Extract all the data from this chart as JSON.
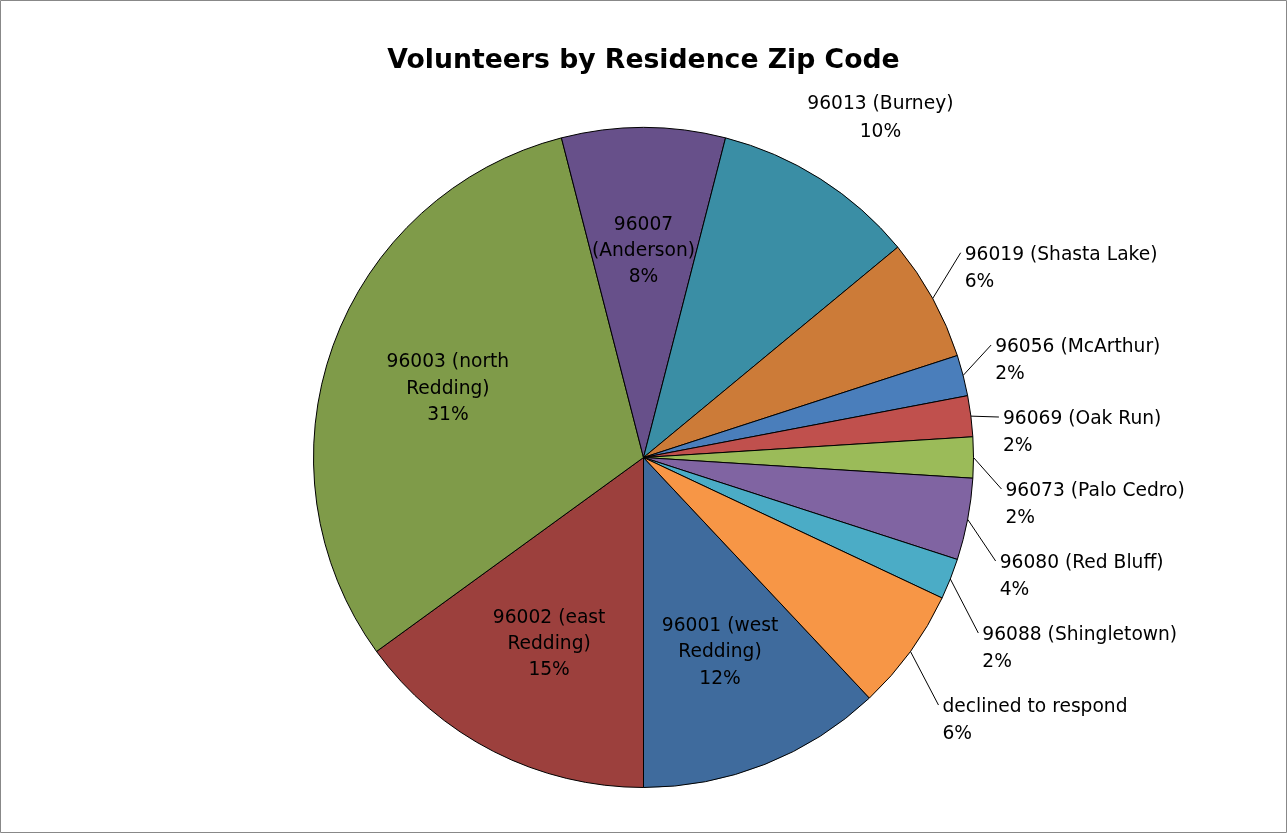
{
  "chart_data": {
    "type": "pie",
    "title": "Volunteers by Residence Zip Code",
    "categories": [
      "96001 (west Redding)",
      "96002 (east Redding)",
      "96003 (north Redding)",
      "96007 (Anderson)",
      "96013 (Burney)",
      "96019 (Shasta Lake)",
      "96056 (McArthur)",
      "96069 (Oak Run)",
      "96073 (Palo Cedro)",
      "96080 (Red Bluff)",
      "96088 (Shingletown)",
      "declined to respond"
    ],
    "values": [
      12,
      15,
      31,
      8,
      10,
      6,
      2,
      2,
      2,
      4,
      2,
      6
    ],
    "value_labels": [
      "12%",
      "15%",
      "31%",
      "8%",
      "10%",
      "6%",
      "2%",
      "2%",
      "2%",
      "4%",
      "2%",
      "6%"
    ],
    "colors": [
      "#3f6b9d",
      "#9c403d",
      "#7f9b49",
      "#67508a",
      "#3a8ea5",
      "#cc7b38",
      "#4a7ebb",
      "#c0504d",
      "#9bbb59",
      "#8064a2",
      "#4bacc6",
      "#f79646"
    ]
  }
}
